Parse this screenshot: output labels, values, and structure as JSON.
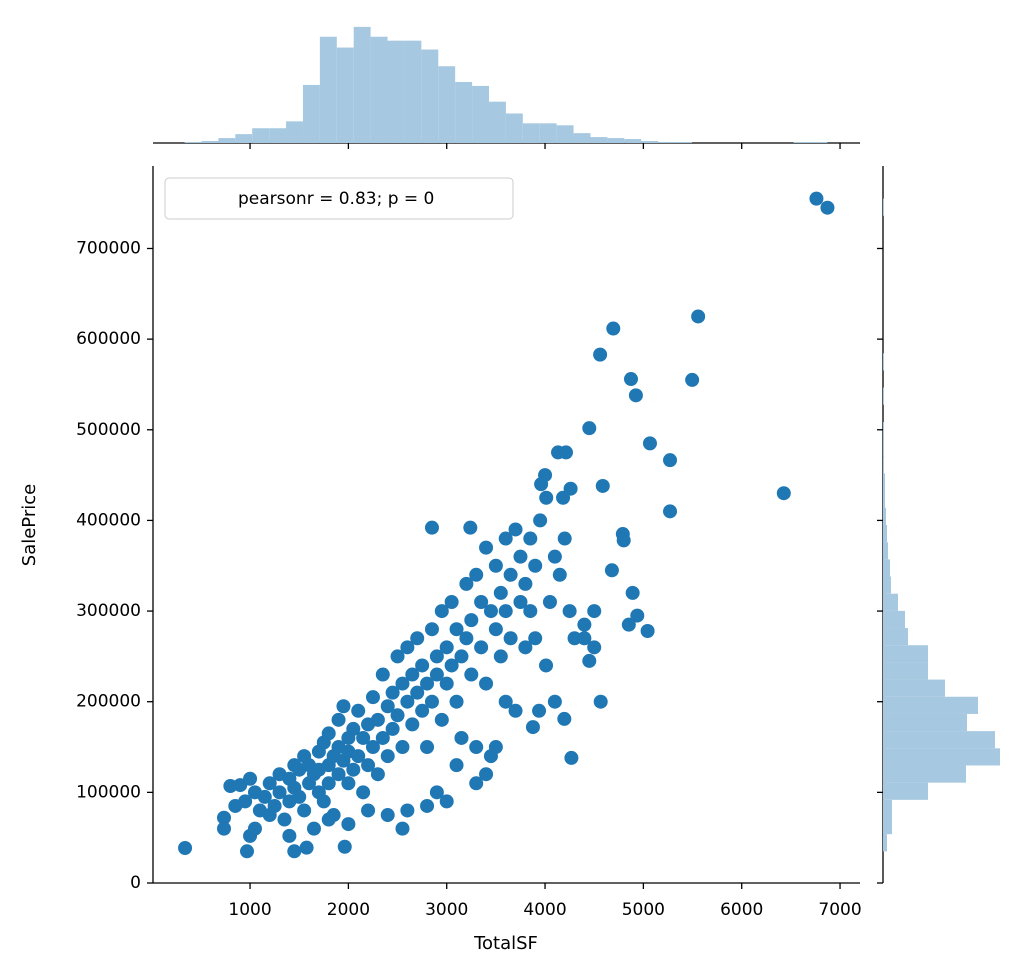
{
  "chart_data": {
    "type": "scatter",
    "annotation": "pearsonr = 0.83; p = 0",
    "x_label": "TotalSF",
    "y_label": "SalePrice",
    "color": "#1f77b4",
    "xlim": [
      13,
      7203
    ],
    "ylim": [
      0,
      791000
    ],
    "xticks": [
      1000,
      2000,
      3000,
      4000,
      5000,
      6000,
      7000
    ],
    "yticks": [
      0,
      100000,
      200000,
      300000,
      400000,
      500000,
      600000,
      700000
    ],
    "x": [
      339,
      6760,
      6872,
      6428,
      5557,
      4694,
      4560,
      4874,
      5496,
      4924,
      5067,
      5271,
      4450,
      5271,
      4587,
      4791,
      4800,
      4680,
      4891,
      4938,
      5043,
      4852,
      4566,
      4268,
      4196,
      3877,
      3939,
      4010,
      1963,
      969,
      1450,
      1575,
      2550,
      735,
      735,
      1400,
      2850,
      3240,
      4213,
      4132,
      4000,
      4260,
      4183,
      3960,
      4012,
      800,
      850,
      900,
      950,
      1000,
      1000,
      1050,
      1050,
      1100,
      1150,
      1200,
      1200,
      1250,
      1300,
      1300,
      1350,
      1400,
      1400,
      1450,
      1450,
      1500,
      1500,
      1550,
      1550,
      1600,
      1600,
      1650,
      1650,
      1700,
      1700,
      1700,
      1750,
      1750,
      1800,
      1800,
      1800,
      1850,
      1850,
      1900,
      1900,
      1900,
      1950,
      1950,
      2000,
      2000,
      2000,
      2050,
      2050,
      2100,
      2100,
      2150,
      2150,
      2200,
      2200,
      2250,
      2250,
      2300,
      2300,
      2350,
      2350,
      2400,
      2400,
      2450,
      2450,
      2500,
      2500,
      2550,
      2550,
      2600,
      2600,
      2650,
      2650,
      2700,
      2700,
      2750,
      2750,
      2800,
      2800,
      2850,
      2850,
      2900,
      2900,
      2950,
      2950,
      3000,
      3000,
      3050,
      3050,
      3100,
      3100,
      3150,
      3150,
      3200,
      3200,
      3250,
      3250,
      3300,
      3300,
      3350,
      3350,
      3400,
      3400,
      3450,
      3450,
      3500,
      3500,
      3550,
      3550,
      3600,
      3600,
      3650,
      3650,
      3700,
      3700,
      3750,
      3750,
      3800,
      3800,
      3850,
      3850,
      3900,
      3900,
      3950,
      4050,
      4100,
      4150,
      4200,
      4250,
      4300,
      4400,
      4450,
      4500,
      3000,
      2900,
      2800,
      3100,
      3300,
      3400,
      3500,
      2600,
      2400,
      2200,
      2000,
      1800,
      3600,
      4100,
      4400,
      4500
    ],
    "values": [
      38600,
      755000,
      745000,
      430000,
      625000,
      611700,
      582900,
      556000,
      555000,
      538000,
      485000,
      466500,
      501800,
      410000,
      438000,
      385000,
      378000,
      345000,
      320000,
      295000,
      278000,
      285000,
      200000,
      138000,
      181000,
      172000,
      190000,
      240000,
      40000,
      35000,
      35000,
      39000,
      60000,
      60000,
      72000,
      52000,
      392000,
      392000,
      475000,
      475000,
      450000,
      435000,
      425000,
      440000,
      425000,
      107000,
      85000,
      108000,
      90000,
      115000,
      52000,
      60000,
      100000,
      80000,
      95000,
      110000,
      75000,
      85000,
      100000,
      120000,
      70000,
      90000,
      115000,
      105000,
      130000,
      95000,
      125000,
      80000,
      140000,
      110000,
      130000,
      60000,
      120000,
      100000,
      145000,
      125000,
      90000,
      155000,
      130000,
      110000,
      165000,
      140000,
      75000,
      120000,
      180000,
      150000,
      135000,
      195000,
      110000,
      160000,
      145000,
      170000,
      125000,
      190000,
      140000,
      160000,
      100000,
      175000,
      130000,
      150000,
      205000,
      180000,
      120000,
      230000,
      160000,
      195000,
      140000,
      210000,
      170000,
      250000,
      185000,
      150000,
      220000,
      200000,
      260000,
      175000,
      230000,
      270000,
      210000,
      190000,
      240000,
      220000,
      150000,
      280000,
      200000,
      250000,
      230000,
      300000,
      180000,
      260000,
      220000,
      240000,
      310000,
      280000,
      200000,
      250000,
      160000,
      330000,
      270000,
      290000,
      230000,
      340000,
      150000,
      310000,
      260000,
      370000,
      220000,
      300000,
      140000,
      350000,
      280000,
      320000,
      250000,
      380000,
      300000,
      340000,
      270000,
      390000,
      190000,
      360000,
      310000,
      330000,
      260000,
      380000,
      300000,
      350000,
      270000,
      400000,
      310000,
      360000,
      340000,
      380000,
      300000,
      270000,
      285000,
      245000,
      260000,
      90000,
      100000,
      85000,
      130000,
      110000,
      120000,
      150000,
      80000,
      75000,
      80000,
      65000,
      70000,
      200000,
      200000,
      270000,
      300000
    ],
    "x_hist": {
      "color": "#a6c8e0",
      "bins": [
        334,
        506,
        678,
        850,
        1022,
        1194,
        1366,
        1538,
        1710,
        1882,
        2054,
        2226,
        2398,
        2570,
        2742,
        2914,
        3086,
        3258,
        3430,
        3602,
        3774,
        3946,
        4118,
        4290,
        4462,
        4634,
        4806,
        4978,
        5150,
        5322,
        5494,
        5666,
        5838,
        6010,
        6182,
        6354,
        6526,
        6698,
        6870
      ],
      "counts": [
        1,
        2,
        5,
        9,
        15,
        15,
        22,
        59,
        108,
        97,
        118,
        108,
        104,
        104,
        95,
        78,
        62,
        58,
        42,
        30,
        20,
        20,
        18,
        10,
        6,
        5,
        4,
        2,
        1,
        1,
        0,
        0,
        0,
        0,
        0,
        0,
        1,
        1
      ],
      "lim": [
        0,
        125
      ]
    },
    "y_hist": {
      "color": "#a6c8e0",
      "bins": [
        34900,
        53850,
        72800,
        91750,
        110700,
        129650,
        148600,
        167550,
        186500,
        205450,
        224400,
        243350,
        262300,
        281250,
        300200,
        319150,
        338100,
        357050,
        376000,
        394950,
        413900,
        432850,
        451800,
        470750,
        489700,
        508650,
        527600,
        546550,
        565500,
        584450,
        603400,
        622350,
        641300,
        660250,
        679200,
        698150,
        717100,
        736050,
        755000
      ],
      "counts": [
        4,
        9,
        9,
        45,
        83,
        117,
        112,
        84,
        95,
        62,
        45,
        45,
        25,
        22,
        15,
        8,
        7,
        5,
        4,
        3,
        2,
        2,
        1,
        1,
        1,
        0,
        1,
        0,
        1,
        0,
        0,
        0,
        0,
        0,
        0,
        0,
        0,
        1
      ],
      "lim": [
        0,
        125
      ]
    }
  }
}
